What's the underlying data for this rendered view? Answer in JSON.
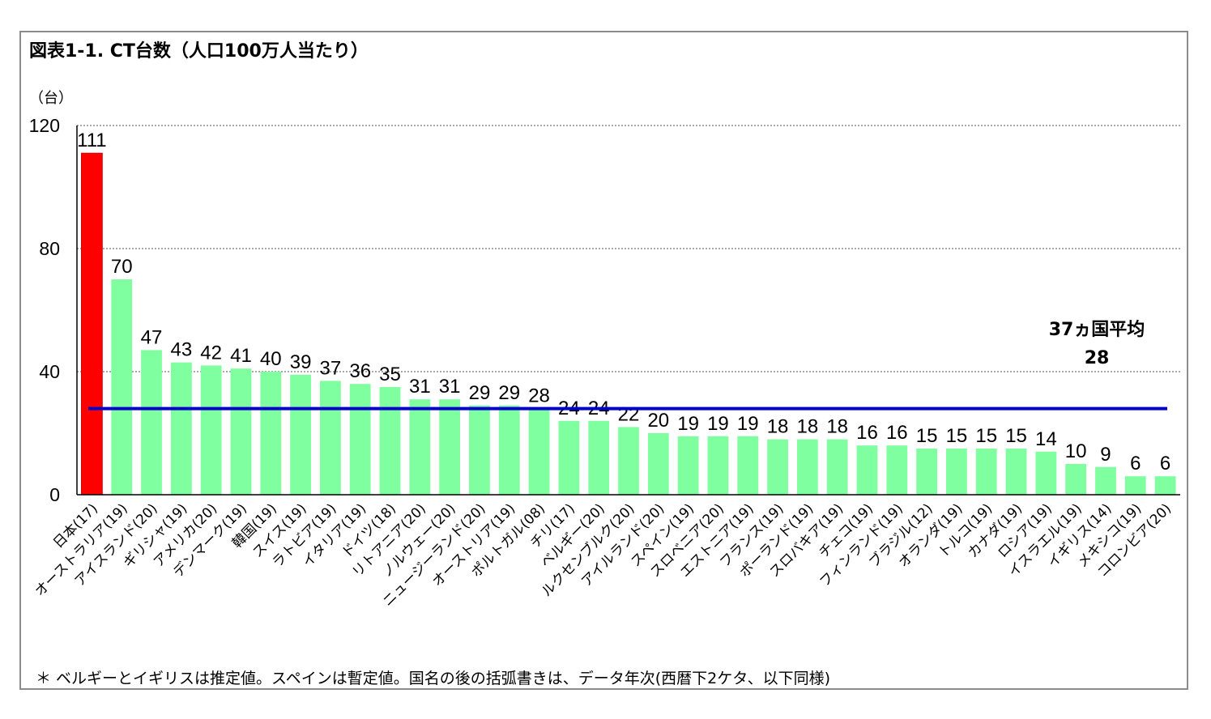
{
  "chart_data": {
    "type": "bar",
    "title": "図表1-1. CT台数（人口100万人当たり）",
    "ylabel": "（台）",
    "ylim": [
      0,
      120
    ],
    "yticks": [
      0,
      40,
      80,
      120
    ],
    "grid": true,
    "categories": [
      "日本(17)",
      "オーストラリア(19)",
      "アイスランド(20)",
      "ギリシャ(19)",
      "アメリカ(20)",
      "デンマーク(19)",
      "韓国(19)",
      "スイス(19)",
      "ラトビア(19)",
      "イタリア(19)",
      "ドイツ(18)",
      "リトアニア(20)",
      "ノルウェー(20)",
      "ニュージーランド(20)",
      "オーストリア(19)",
      "ポルトガル(08)",
      "チリ(17)",
      "ベルギー(20)",
      "ルクセンブルク(20)",
      "アイルランド(20)",
      "スペイン(19)",
      "スロベニア(20)",
      "エストニア(19)",
      "フランス(19)",
      "ポーランド(19)",
      "スロバキア(19)",
      "チェコ(19)",
      "フィンランド(19)",
      "ブラジル(12)",
      "オランダ(19)",
      "トルコ(19)",
      "カナダ(19)",
      "ロシア(19)",
      "イスラエル(19)",
      "イギリス(14)",
      "メキシコ(19)",
      "コロンビア(20)"
    ],
    "series": [
      {
        "values": [
          111,
          70,
          47,
          43,
          42,
          41,
          40,
          39,
          37,
          36,
          35,
          31,
          31,
          29,
          29,
          28,
          24,
          24,
          22,
          20,
          19,
          19,
          19,
          18,
          18,
          18,
          16,
          16,
          15,
          15,
          15,
          15,
          14,
          10,
          9,
          6,
          6
        ]
      }
    ],
    "bar_colors": {
      "highlight": "#ff0000",
      "default": "#7fff9f"
    },
    "average": {
      "label": "37ヵ国平均",
      "value": 28,
      "color": "#0000cc"
    }
  },
  "footnote": "＊ ベルギーとイギリスは推定値。スペインは暫定値。国名の後の括弧書きは、データ年次(西暦下2ケタ、以下同様)"
}
